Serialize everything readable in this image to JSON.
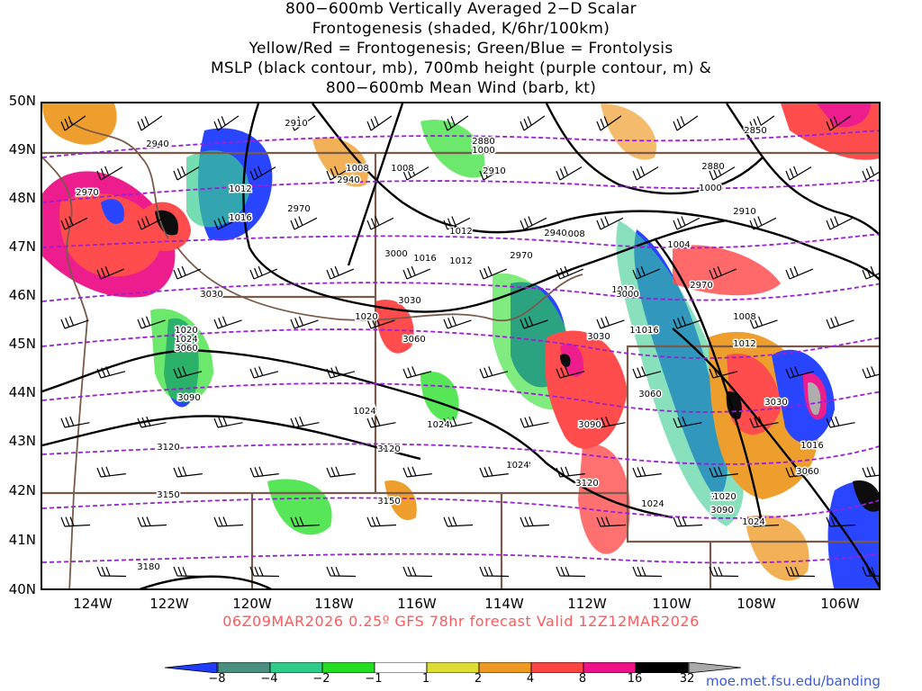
{
  "title": {
    "lines": [
      "800−600mb Vertically Averaged 2−D Scalar",
      "Frontogenesis (shaded, K/6hr/100km)",
      "Yellow/Red = Frontogenesis;  Green/Blue = Frontolysis",
      "MSLP (black contour, mb), 700mb height (purple contour, m) &",
      "800−600mb Mean Wind (barb, kt)"
    ]
  },
  "axes": {
    "lat_labels": [
      "50N",
      "49N",
      "48N",
      "47N",
      "46N",
      "45N",
      "44N",
      "43N",
      "42N",
      "41N",
      "40N"
    ],
    "lon_labels": [
      "124W",
      "122W",
      "120W",
      "118W",
      "116W",
      "114W",
      "112W",
      "110W",
      "108W",
      "106W"
    ]
  },
  "footer": {
    "caption": "06Z09MAR2026 0.25º GFS 78hr forecast Valid 12Z12MAR2026",
    "credit": "moe.met.fsu.edu/banding"
  },
  "colorbar": {
    "labels": [
      "−8",
      "−4",
      "−2",
      "−1",
      "1",
      "2",
      "4",
      "8",
      "16",
      "32"
    ],
    "colors": [
      "#1f3cff",
      "#4a8f80",
      "#2ecc8a",
      "#22dd22",
      "#ffffff",
      "#dddd33",
      "#ee9922",
      "#ff4444",
      "#ee1188",
      "#000000",
      "#aaaaaa"
    ]
  },
  "contours": {
    "mslp_labels": [
      "1008",
      "1012",
      "1016",
      "1012",
      "1016",
      "1020",
      "1024",
      "1020",
      "1024",
      "1024",
      "1028",
      "1004",
      "1008",
      "1012",
      "1016",
      "1000",
      "1004",
      "1008",
      "1012",
      "1016",
      "1020",
      "1024",
      "1000",
      "1008",
      "1012",
      "1016",
      "1020",
      "1024",
      "1024"
    ],
    "height_labels": [
      "2910",
      "2940",
      "2940",
      "2970",
      "2970",
      "2970",
      "3000",
      "3030",
      "3030",
      "3060",
      "3060",
      "3090",
      "3120",
      "3120",
      "3150",
      "3150",
      "3180",
      "2880",
      "2910",
      "2850",
      "2880",
      "2910",
      "2940",
      "2970",
      "3000",
      "3030",
      "3060",
      "3090",
      "3120",
      "3090",
      "3060",
      "3030"
    ]
  }
}
